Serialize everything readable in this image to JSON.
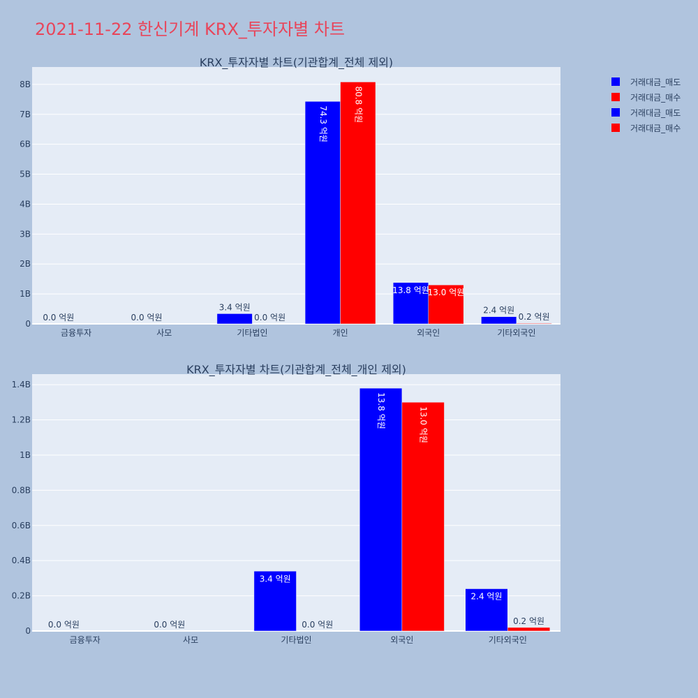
{
  "page": {
    "title": "2021-11-22 한신기계 KRX_투자자별 차트"
  },
  "legend": {
    "items": [
      {
        "label": "거래대금_매도",
        "color": "#0000ff"
      },
      {
        "label": "거래대금_매수",
        "color": "#ff0000"
      },
      {
        "label": "거래대금_매도",
        "color": "#0000ff"
      },
      {
        "label": "거래대금_매수",
        "color": "#ff0000"
      }
    ]
  },
  "chart_data": [
    {
      "type": "bar",
      "title": "KRX_투자자별 차트(기관합계_전체 제외)",
      "categories": [
        "금융투자",
        "사모",
        "기타법인",
        "개인",
        "외국인",
        "기타외국인"
      ],
      "series": [
        {
          "name": "거래대금_매도",
          "color": "#0000ff",
          "values": [
            0,
            0,
            340000000,
            7430000000,
            1380000000,
            240000000
          ],
          "labels": [
            "0.0 억원",
            "0.0 억원",
            "3.4 억원",
            "74.3 억원",
            "13.8 억원",
            "2.4 억원"
          ]
        },
        {
          "name": "거래대금_매수",
          "color": "#ff0000",
          "values": [
            0,
            0,
            0,
            8080000000,
            1300000000,
            20000000
          ],
          "labels": [
            "",
            "",
            "0.0 억원",
            "80.8 억원",
            "13.0 억원",
            "0.2 억원"
          ]
        }
      ],
      "yticks": [
        0,
        1000000000,
        2000000000,
        3000000000,
        4000000000,
        5000000000,
        6000000000,
        7000000000,
        8000000000
      ],
      "yticklabels": [
        "0",
        "1B",
        "2B",
        "3B",
        "4B",
        "5B",
        "6B",
        "7B",
        "8B"
      ],
      "ylim": [
        0,
        8580000000
      ],
      "grid": true,
      "legend": "top-right"
    },
    {
      "type": "bar",
      "title": "KRX_투자자별 차트(기관합계_전체_개인 제외)",
      "categories": [
        "금융투자",
        "사모",
        "기타법인",
        "외국인",
        "기타외국인"
      ],
      "series": [
        {
          "name": "거래대금_매도",
          "color": "#0000ff",
          "values": [
            0,
            0,
            340000000,
            1380000000,
            240000000
          ],
          "labels": [
            "0.0 억원",
            "0.0 억원",
            "3.4 억원",
            "13.8 억원",
            "2.4 억원"
          ]
        },
        {
          "name": "거래대금_매수",
          "color": "#ff0000",
          "values": [
            0,
            0,
            0,
            1300000000,
            20000000
          ],
          "labels": [
            "",
            "",
            "0.0 억원",
            "13.0 억원",
            "0.2 억원"
          ]
        }
      ],
      "yticks": [
        0,
        200000000,
        400000000,
        600000000,
        800000000,
        1000000000,
        1200000000,
        1400000000
      ],
      "yticklabels": [
        "0",
        "0.2B",
        "0.4B",
        "0.6B",
        "0.8B",
        "1B",
        "1.2B",
        "1.4B"
      ],
      "ylim": [
        0,
        1460000000
      ],
      "grid": true,
      "legend": "top-right"
    }
  ]
}
